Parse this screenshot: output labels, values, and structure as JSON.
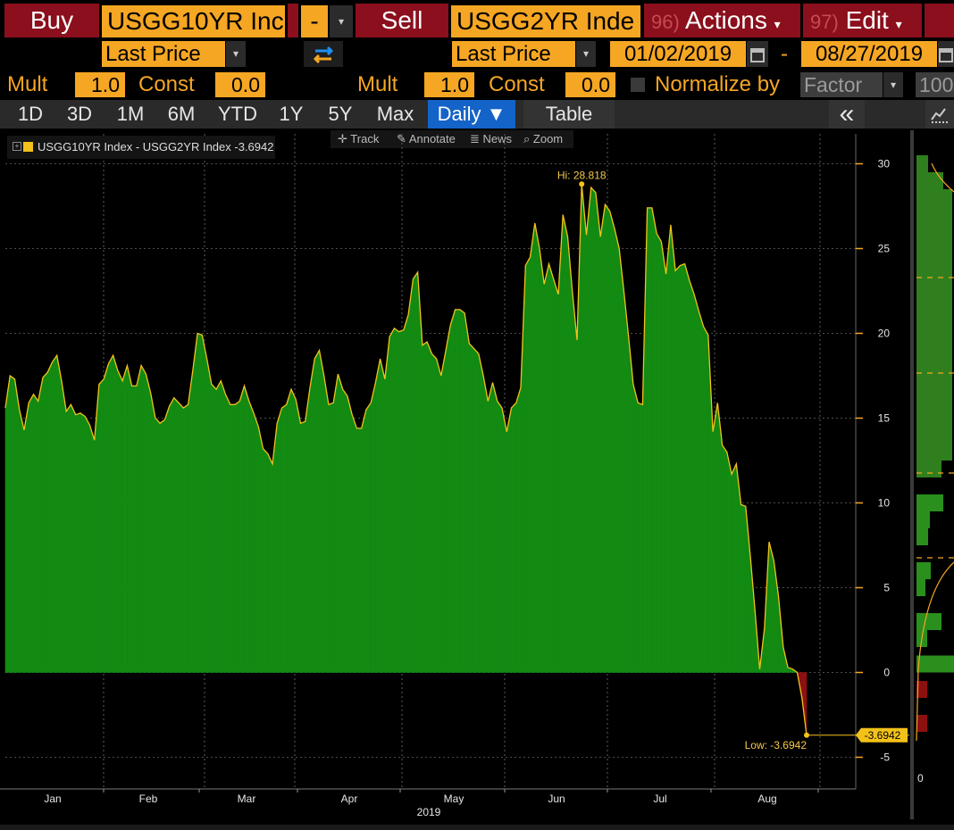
{
  "header": {
    "buy_label": "Buy",
    "buy_security": "USGG10YR Inc",
    "operator": "-",
    "sell_label": "Sell",
    "sell_security": "USGG2YR Inde",
    "actions_num": "96)",
    "actions_label": "Actions",
    "edit_num": "97)",
    "edit_label": "Edit",
    "dropdown_glyph": "▾"
  },
  "fields": {
    "buy_field": "Last Price",
    "sell_field": "Last Price",
    "start_date": "01/02/2019",
    "date_sep": "-",
    "end_date": "08/27/2019"
  },
  "params": {
    "mult_label": "Mult",
    "const_label": "Const",
    "buy_mult": "1.0",
    "buy_const": "0.0",
    "sell_mult": "1.0",
    "sell_const": "0.0",
    "normalize_label": "Normalize by",
    "normalize_value": "Factor",
    "factor_value": "100"
  },
  "toolbar": {
    "ranges": [
      "1D",
      "3D",
      "1M",
      "6M",
      "YTD",
      "1Y",
      "5Y",
      "Max"
    ],
    "periodicity": "Daily ▼",
    "table_label": "Table",
    "collapse_glyph": "«"
  },
  "chart_tools": {
    "track": "Track",
    "annotate": "Annotate",
    "news": "News",
    "zoom": "Zoom"
  },
  "colors": {
    "accent_orange": "#f5a623",
    "header_red": "#8b0f1c",
    "area_green": "#138a12",
    "negative_red": "#8c1010",
    "line_yellow": "#f2c21a",
    "active_blue": "#1363c8"
  },
  "chart_data": {
    "type": "area",
    "legend": [
      {
        "name": "USGG10YR Index - USGG2YR Index",
        "last": "-3.6942"
      }
    ],
    "year_label": "2019",
    "x_labels": [
      "Jan",
      "Feb",
      "Mar",
      "Apr",
      "May",
      "Jun",
      "Jul",
      "Aug"
    ],
    "y_ticks": [
      30,
      25,
      20,
      15,
      10,
      5,
      0,
      -5
    ],
    "ylim": [
      -7,
      30
    ],
    "grid": true,
    "hi_label": "Hi: 28.818",
    "low_label": "Low: -3.6942",
    "last_value_label": "-3.6942",
    "side_axis_label": "0",
    "series": [
      {
        "name": "USGG10YR Index - USGG2YR Index",
        "values": [
          15.6,
          17.5,
          17.3,
          15.5,
          14.3,
          15.9,
          16.4,
          16.0,
          17.4,
          17.7,
          18.3,
          18.7,
          17.2,
          15.4,
          15.8,
          15.2,
          15.3,
          15.1,
          14.6,
          13.7,
          17.0,
          17.3,
          18.2,
          18.7,
          17.8,
          17.2,
          18.1,
          16.9,
          16.9,
          18.1,
          17.6,
          16.5,
          15.0,
          14.7,
          14.9,
          15.7,
          16.2,
          15.9,
          15.6,
          15.8,
          17.8,
          20.0,
          19.9,
          18.5,
          17.0,
          16.7,
          17.2,
          16.4,
          15.8,
          15.8,
          16.0,
          16.9,
          16.0,
          15.3,
          14.5,
          13.2,
          12.9,
          12.3,
          14.7,
          15.6,
          15.8,
          16.7,
          16.1,
          14.7,
          14.8,
          16.8,
          18.5,
          19.0,
          17.5,
          15.8,
          15.9,
          17.6,
          16.7,
          16.3,
          15.2,
          14.4,
          14.4,
          15.5,
          15.9,
          17.1,
          18.5,
          17.3,
          19.8,
          20.3,
          20.1,
          20.2,
          21.1,
          23.2,
          23.6,
          19.3,
          19.5,
          18.8,
          18.5,
          17.5,
          19.0,
          20.5,
          21.4,
          21.4,
          21.2,
          19.4,
          19.1,
          18.8,
          17.5,
          16.0,
          17.1,
          16.0,
          15.6,
          14.2,
          15.6,
          15.9,
          16.8,
          24.0,
          24.5,
          26.5,
          25.0,
          22.9,
          24.1,
          23.2,
          22.3,
          27.0,
          25.7,
          22.5,
          19.6,
          28.8,
          25.8,
          28.6,
          28.3,
          25.7,
          27.6,
          27.2,
          26.2,
          25.0,
          22.5,
          19.8,
          17.0,
          15.9,
          15.8,
          27.4,
          27.4,
          25.9,
          25.4,
          23.5,
          26.4,
          23.7,
          24.0,
          24.1,
          23.1,
          22.3,
          21.3,
          20.4,
          19.9,
          14.2,
          15.9,
          13.4,
          13.0,
          11.7,
          12.3,
          9.9,
          9.8,
          6.8,
          3.6,
          0.2,
          2.6,
          7.7,
          6.6,
          4.5,
          1.5,
          0.3,
          0.2,
          0.0,
          -1.5,
          -3.7
        ]
      }
    ]
  }
}
